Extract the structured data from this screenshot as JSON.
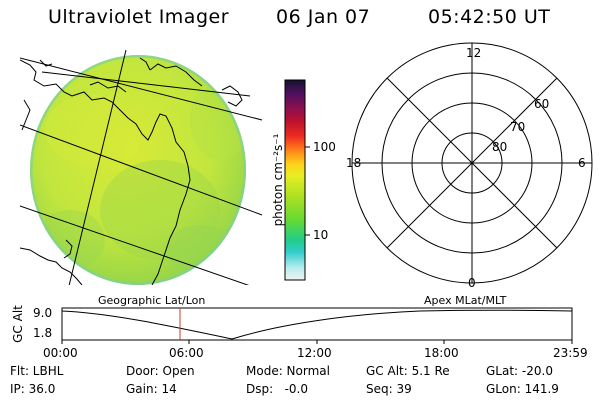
{
  "header": {
    "title": "Ultraviolet Imager",
    "date": "06 Jan 07",
    "time": "05:42:50 UT"
  },
  "colorbar": {
    "label": "photon cm⁻²s⁻¹",
    "ticks": [
      "100",
      "10"
    ]
  },
  "polar": {
    "mlt_labels": [
      "12",
      "18",
      "6",
      "0"
    ],
    "lat_labels": [
      "60",
      "70",
      "80"
    ]
  },
  "panels": {
    "left_caption": "Geographic Lat/Lon",
    "right_caption": "Apex MLat/MLT"
  },
  "timeline": {
    "ylabel": "GC Alt",
    "y_ticks": [
      "9.0",
      "1.8"
    ],
    "x_ticks": [
      "00:00",
      "06:00",
      "12:00",
      "18:00",
      "23:59"
    ]
  },
  "status": {
    "filter": "Flt: LBHL",
    "ip": "IP: 36.0",
    "door": "Door: Open",
    "gain": "Gain: 14",
    "mode": "Mode: Normal",
    "dsp": "Dsp:   -0.0",
    "gc_alt": "GC Alt: 5.1 Re",
    "seq": "Seq: 39",
    "glat": "GLat: -20.0",
    "glon": "GLon: 141.9"
  },
  "colors": {
    "disk_main": "#c6e63c",
    "disk_dark": "#8fd040",
    "marker": "#cc3b2a"
  }
}
